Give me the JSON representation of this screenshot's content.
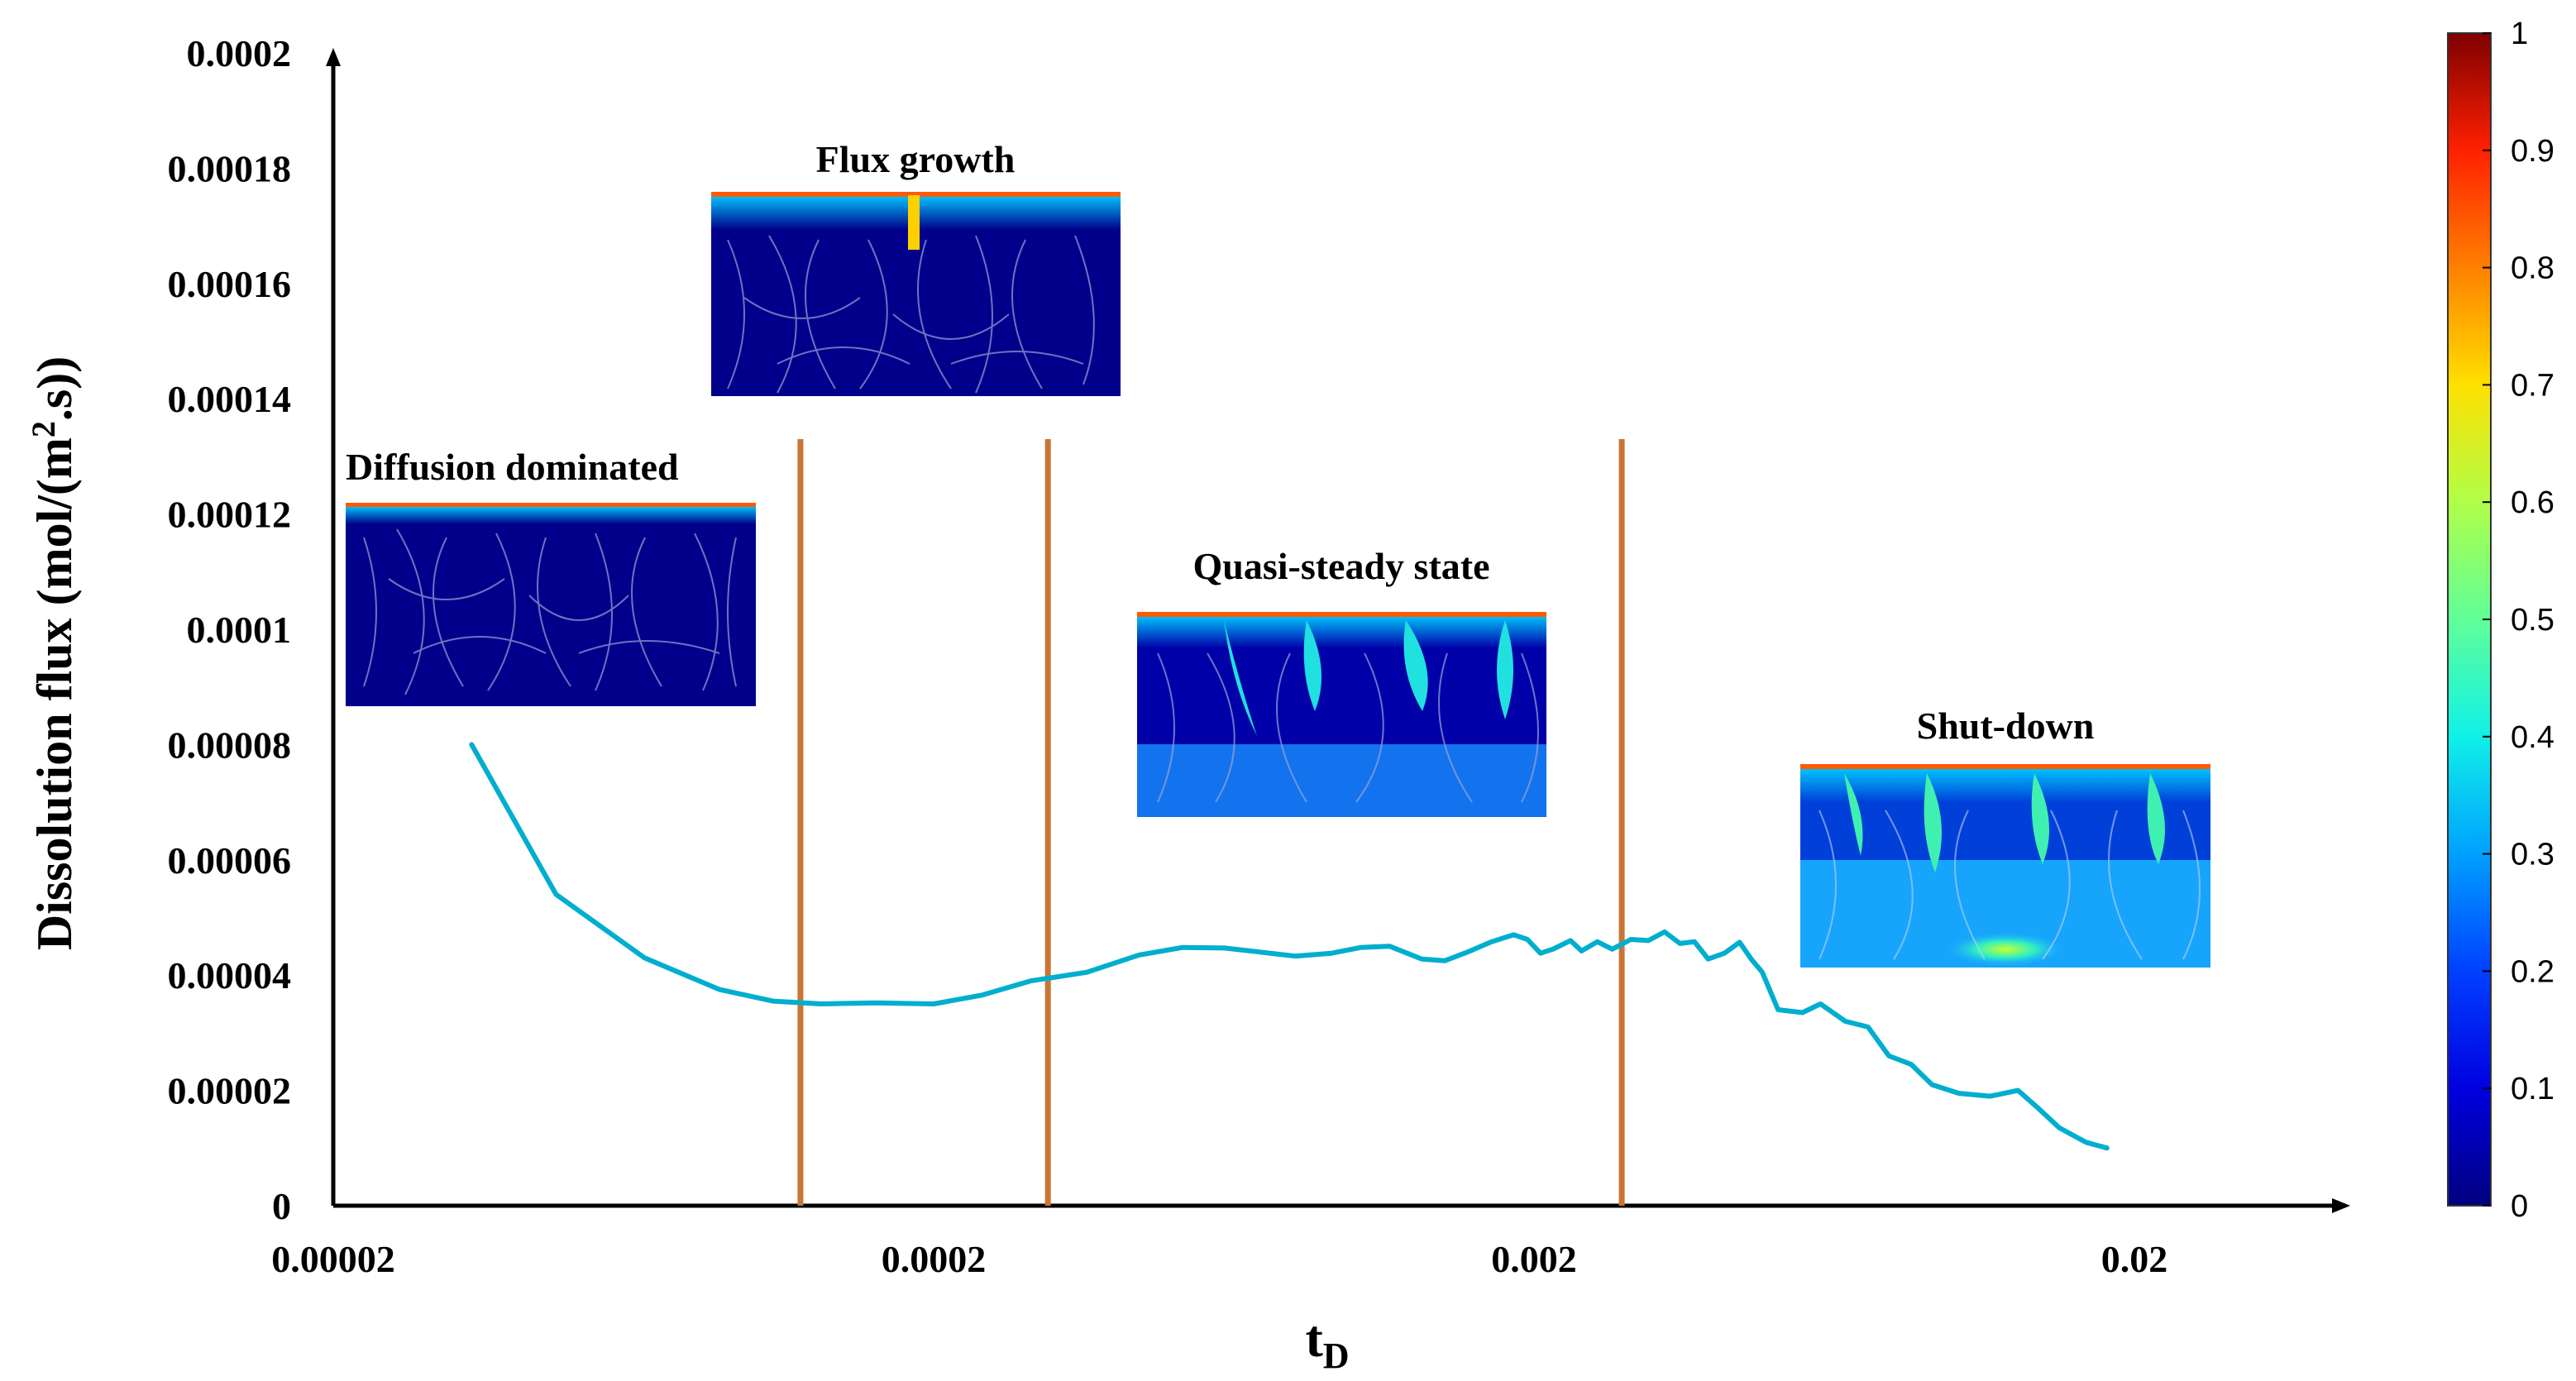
{
  "chart_data": {
    "type": "line",
    "xscale": "log",
    "xlabel": "t",
    "xlabel_sub": "D",
    "ylabel_prefix": "Dissolution flux (mol/(m",
    "ylabel_sup": "2",
    "ylabel_suffix": ".s))",
    "xlim": [
      2e-05,
      0.045
    ],
    "ylim": [
      0,
      0.0002
    ],
    "x_ticks": [
      {
        "value": 2e-05,
        "label": "0.00002"
      },
      {
        "value": 0.0002,
        "label": "0.0002"
      },
      {
        "value": 0.002,
        "label": "0.002"
      },
      {
        "value": 0.02,
        "label": "0.02"
      }
    ],
    "y_ticks": [
      {
        "value": 0.0002,
        "label": "0.0002"
      },
      {
        "value": 0.00018,
        "label": "0.00018"
      },
      {
        "value": 0.00016,
        "label": "0.00016"
      },
      {
        "value": 0.00014,
        "label": "0.00014"
      },
      {
        "value": 0.00012,
        "label": "0.00012"
      },
      {
        "value": 0.0001,
        "label": "0.0001"
      },
      {
        "value": 8e-05,
        "label": "0.00008"
      },
      {
        "value": 6e-05,
        "label": "0.00006"
      },
      {
        "value": 4e-05,
        "label": "0.00004"
      },
      {
        "value": 2e-05,
        "label": "0.00002"
      },
      {
        "value": 0,
        "label": "0"
      }
    ],
    "series": [
      {
        "name": "Dissolution flux",
        "color": "#00AECF",
        "points": [
          [
            3.4e-05,
            8e-05
          ],
          [
            4.7e-05,
            5.4e-05
          ],
          [
            6.6e-05,
            4.3e-05
          ],
          [
            8.8e-05,
            3.75e-05
          ],
          [
            0.000108,
            3.55e-05
          ],
          [
            0.00013,
            3.5e-05
          ],
          [
            0.00016,
            3.52e-05
          ],
          [
            0.0002,
            3.5e-05
          ],
          [
            0.00024,
            3.65e-05
          ],
          [
            0.00029,
            3.9e-05
          ],
          [
            0.00036,
            4.05e-05
          ],
          [
            0.00044,
            4.35e-05
          ],
          [
            0.00052,
            4.48e-05
          ],
          [
            0.00061,
            4.47e-05
          ],
          [
            0.0007,
            4.4e-05
          ],
          [
            0.0008,
            4.33e-05
          ],
          [
            0.00092,
            4.38e-05
          ],
          [
            0.00103,
            4.48e-05
          ],
          [
            0.00115,
            4.5e-05
          ],
          [
            0.0013,
            4.28e-05
          ],
          [
            0.00142,
            4.25e-05
          ],
          [
            0.00155,
            4.4e-05
          ],
          [
            0.0017,
            4.58e-05
          ],
          [
            0.00185,
            4.7e-05
          ],
          [
            0.00195,
            4.62e-05
          ],
          [
            0.00205,
            4.38e-05
          ],
          [
            0.00215,
            4.45e-05
          ],
          [
            0.0023,
            4.6e-05
          ],
          [
            0.0024,
            4.42e-05
          ],
          [
            0.00255,
            4.58e-05
          ],
          [
            0.0027,
            4.45e-05
          ],
          [
            0.0029,
            4.62e-05
          ],
          [
            0.0031,
            4.6e-05
          ],
          [
            0.0033,
            4.75e-05
          ],
          [
            0.0035,
            4.55e-05
          ],
          [
            0.0037,
            4.58e-05
          ],
          [
            0.0039,
            4.28e-05
          ],
          [
            0.00415,
            4.38e-05
          ],
          [
            0.0044,
            4.57e-05
          ],
          [
            0.0046,
            4.28e-05
          ],
          [
            0.0048,
            4.05e-05
          ],
          [
            0.0051,
            3.4e-05
          ],
          [
            0.0056,
            3.35e-05
          ],
          [
            0.006,
            3.5e-05
          ],
          [
            0.0066,
            3.2e-05
          ],
          [
            0.0072,
            3.1e-05
          ],
          [
            0.0078,
            2.6e-05
          ],
          [
            0.0085,
            2.45e-05
          ],
          [
            0.0092,
            2.1e-05
          ],
          [
            0.0102,
            1.95e-05
          ],
          [
            0.0115,
            1.9e-05
          ],
          [
            0.0128,
            2e-05
          ],
          [
            0.0138,
            1.7e-05
          ],
          [
            0.015,
            1.35e-05
          ],
          [
            0.0166,
            1.1e-05
          ],
          [
            0.018,
            1e-05
          ]
        ]
      }
    ],
    "vlines": [
      0.00012,
      0.00031,
      0.0028
    ],
    "vline_top": 0.000133,
    "vline_color": "#C87535",
    "phases": [
      {
        "label": "Diffusion dominated"
      },
      {
        "label": "Flux growth"
      },
      {
        "label": "Quasi-steady state"
      },
      {
        "label": "Shut-down"
      }
    ],
    "colorbar": {
      "ticks": [
        "0",
        "0.1",
        "0.2",
        "0.3",
        "0.4",
        "0.5",
        "0.6",
        "0.7",
        "0.8",
        "0.9",
        "1"
      ],
      "colors": [
        "#00007F",
        "#0000E0",
        "#0040FF",
        "#00A0FF",
        "#10F0E8",
        "#60FF98",
        "#B0FF48",
        "#FFE000",
        "#FF8000",
        "#FF2000",
        "#7F0000"
      ]
    }
  }
}
